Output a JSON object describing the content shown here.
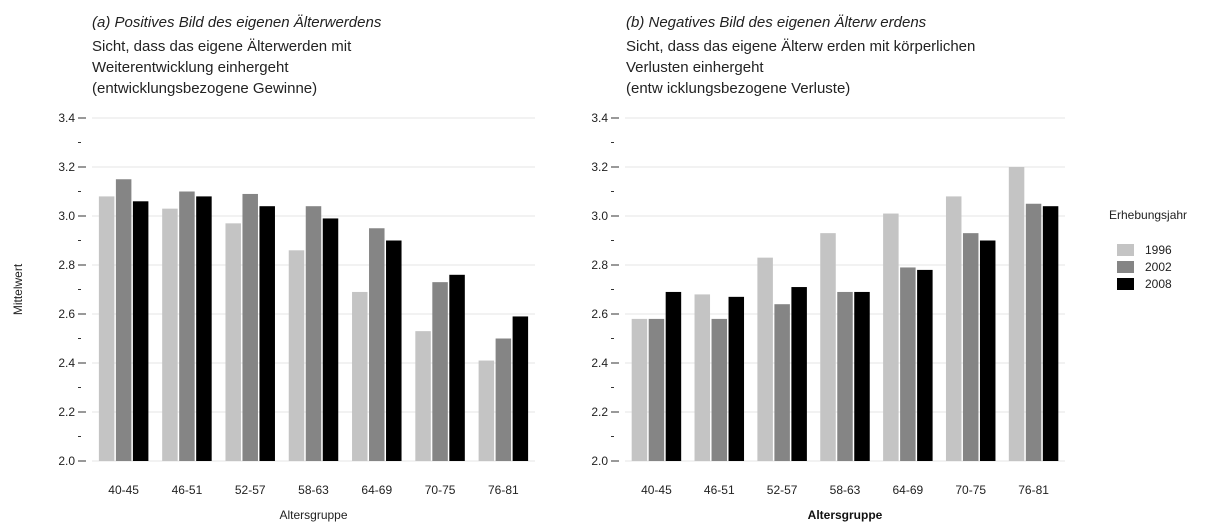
{
  "chart_data": [
    {
      "type": "bar",
      "subtitle": "(a) Positives Bild des eigenen Älterwerdens",
      "title_lines": [
        "Sicht, dass das eigene Älterwerden mit",
        "Weiterentwicklung einhergeht",
        "(entwicklungsbezogene Gewinne)"
      ],
      "ylabel": "Mittelwert",
      "xlabel": "Altersgruppe",
      "ylim": [
        2.0,
        3.4
      ],
      "yticks": [
        "2.0",
        "2.2",
        "2.4",
        "2.6",
        "2.8",
        "3.0",
        "3.2",
        "3.4"
      ],
      "categories": [
        "40-45",
        "46-51",
        "52-57",
        "58-63",
        "64-69",
        "70-75",
        "76-81"
      ],
      "series": [
        {
          "name": "1996",
          "values": [
            3.08,
            3.03,
            2.97,
            2.86,
            2.69,
            2.53,
            2.41
          ]
        },
        {
          "name": "2002",
          "values": [
            3.15,
            3.1,
            3.09,
            3.04,
            2.95,
            2.73,
            2.5
          ]
        },
        {
          "name": "2008",
          "values": [
            3.06,
            3.08,
            3.04,
            2.99,
            2.9,
            2.76,
            2.59
          ]
        }
      ],
      "grid": true
    },
    {
      "type": "bar",
      "subtitle": "(b) Negatives Bild des eigenen Älterw erdens",
      "title_lines": [
        "Sicht, dass das eigene Älterw erden mit körperlichen",
        "Verlusten einhergeht",
        "(entw icklungsbezogene Verluste)"
      ],
      "ylabel": "",
      "xlabel": "Altersgruppe",
      "ylim": [
        2.0,
        3.4
      ],
      "yticks": [
        "2.0",
        "2.2",
        "2.4",
        "2.6",
        "2.8",
        "3.0",
        "3.2",
        "3.4"
      ],
      "categories": [
        "40-45",
        "46-51",
        "52-57",
        "58-63",
        "64-69",
        "70-75",
        "76-81"
      ],
      "series": [
        {
          "name": "1996",
          "values": [
            2.58,
            2.68,
            2.83,
            2.93,
            3.01,
            3.08,
            3.2
          ]
        },
        {
          "name": "2002",
          "values": [
            2.58,
            2.58,
            2.64,
            2.69,
            2.79,
            2.93,
            3.05
          ]
        },
        {
          "name": "2008",
          "values": [
            2.69,
            2.67,
            2.71,
            2.69,
            2.78,
            2.9,
            3.04
          ]
        }
      ],
      "grid": true
    }
  ],
  "legend": {
    "title": "Erhebungsjahr",
    "items": [
      "1996",
      "2002",
      "2008"
    ],
    "placement": "right"
  },
  "colors": {
    "1996": "#c4c4c4",
    "2002": "#858585",
    "2008": "#000000",
    "grid": "#e6e6e6"
  }
}
